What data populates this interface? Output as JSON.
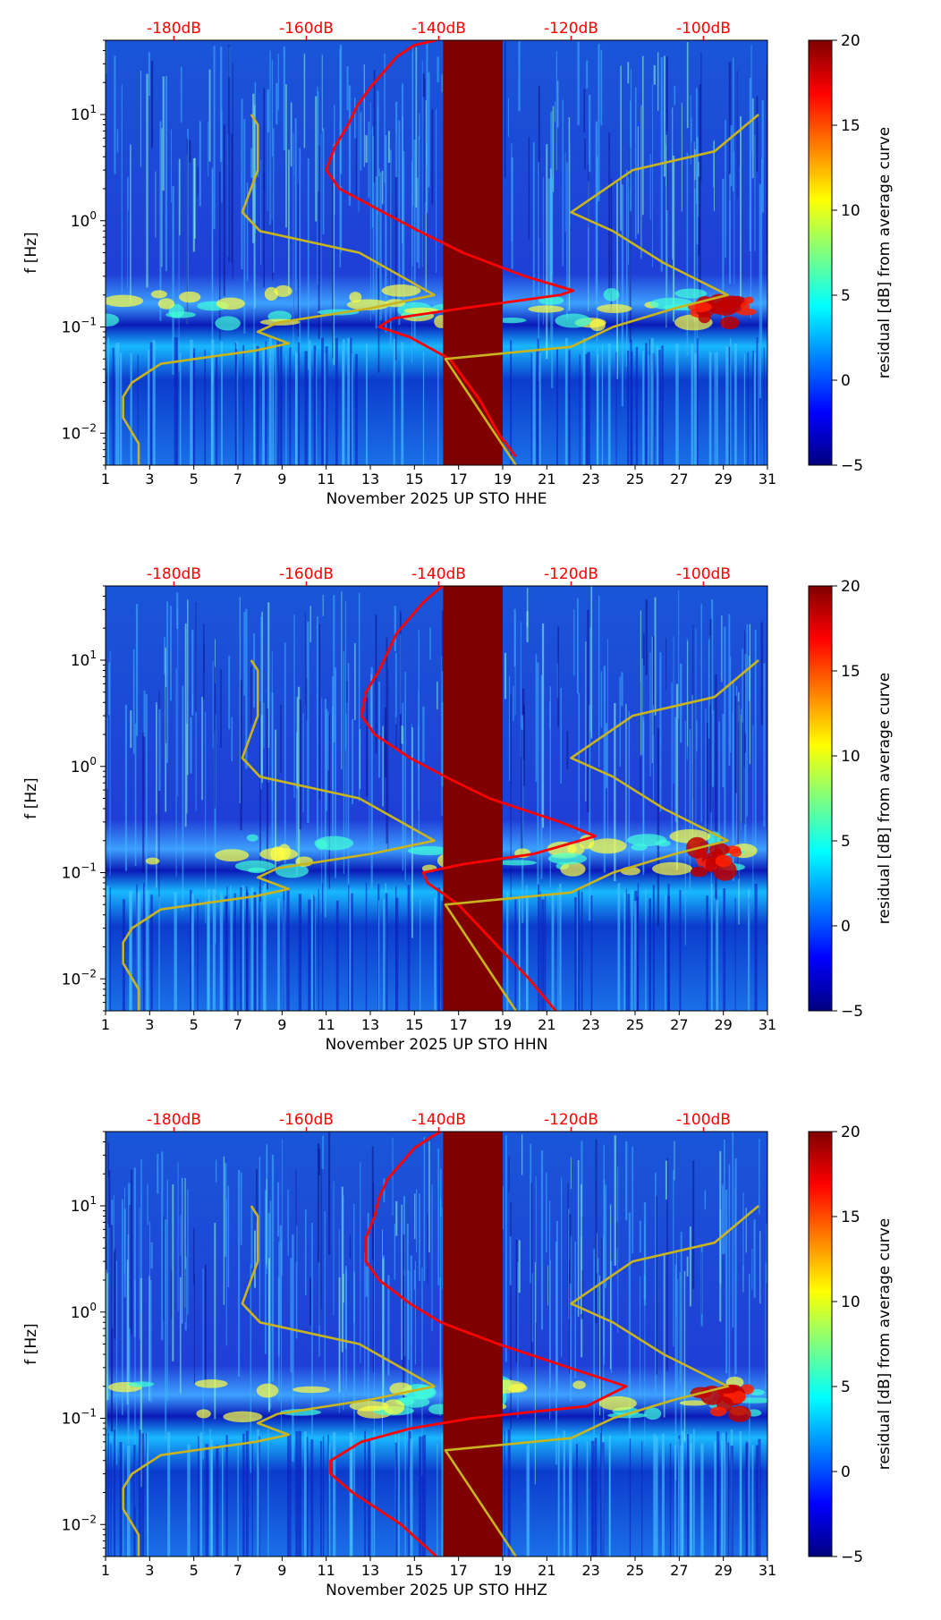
{
  "figure": {
    "colormap": [
      "#00007f",
      "#0000ff",
      "#007fff",
      "#00ffff",
      "#7fff7f",
      "#ffff00",
      "#ff7f00",
      "#ff0000",
      "#7f0000"
    ],
    "top_axis_color": "#ff0000",
    "red_curve_color": "#ff0000",
    "model_curve_color": "#c8b41e",
    "gap_color": "#7f0000"
  },
  "chart_data": [
    {
      "type": "heatmap",
      "xlabel": "November 2025 UP STO  HHE",
      "ylabel": "f [Hz]",
      "xlim": [
        1,
        31
      ],
      "ylim": [
        0.005,
        50
      ],
      "yscale": "log",
      "x_ticks": [
        "1",
        "3",
        "5",
        "7",
        "9",
        "11",
        "13",
        "15",
        "17",
        "19",
        "21",
        "23",
        "25",
        "27",
        "29",
        "31"
      ],
      "y_ticks": [
        {
          "value": 0.01,
          "label": "10",
          "exp": "−2"
        },
        {
          "value": 0.1,
          "label": "10",
          "exp": "−1"
        },
        {
          "value": 1,
          "label": "10",
          "exp": "0"
        },
        {
          "value": 10,
          "label": "10",
          "exp": "1"
        }
      ],
      "top_axis": {
        "ticks": [
          {
            "x": 4.1,
            "label": "-180dB"
          },
          {
            "x": 10.1,
            "label": "-160dB"
          },
          {
            "x": 16.1,
            "label": "-140dB"
          },
          {
            "x": 22.1,
            "label": "-120dB"
          },
          {
            "x": 28.1,
            "label": "-100dB"
          }
        ]
      },
      "data_gap": [
        16.3,
        19.0
      ],
      "colorbar": {
        "label": "residual [dB] from average curve",
        "range": [
          -5,
          20
        ],
        "ticks": [
          "−5",
          "0",
          "5",
          "10",
          "15",
          "20"
        ]
      },
      "series": [
        {
          "kind": "spectrum",
          "points": [
            [
              0.006,
              19.6
            ],
            [
              0.01,
              18.8
            ],
            [
              0.02,
              18.0
            ],
            [
              0.05,
              16.6
            ],
            [
              0.08,
              14.8
            ],
            [
              0.1,
              13.4
            ],
            [
              0.12,
              14.0
            ],
            [
              0.15,
              17.2
            ],
            [
              0.2,
              21.6
            ],
            [
              0.22,
              22.2
            ],
            [
              0.3,
              20.0
            ],
            [
              0.5,
              17.2
            ],
            [
              0.8,
              15.2
            ],
            [
              1.2,
              13.6
            ],
            [
              2.0,
              11.6
            ],
            [
              3.0,
              11.0
            ],
            [
              5.0,
              11.4
            ],
            [
              8.0,
              12.0
            ],
            [
              12.0,
              12.4
            ],
            [
              18.0,
              13.0
            ],
            [
              25.0,
              13.6
            ],
            [
              35.0,
              14.2
            ],
            [
              45.0,
              15.0
            ],
            [
              50.0,
              16.0
            ]
          ]
        },
        {
          "kind": "noise-model-low",
          "points": [
            [
              0.005,
              2.5
            ],
            [
              0.008,
              2.5
            ],
            [
              0.014,
              1.8
            ],
            [
              0.022,
              1.8
            ],
            [
              0.03,
              2.2
            ],
            [
              0.045,
              3.5
            ],
            [
              0.06,
              7.8
            ],
            [
              0.07,
              9.3
            ],
            [
              0.09,
              7.9
            ],
            [
              0.11,
              8.8
            ],
            [
              0.15,
              13.0
            ],
            [
              0.2,
              15.9
            ],
            [
              0.5,
              12.5
            ],
            [
              0.8,
              8.0
            ],
            [
              1.2,
              7.2
            ],
            [
              3.0,
              7.9
            ],
            [
              8.0,
              7.9
            ],
            [
              10.0,
              7.6
            ]
          ]
        },
        {
          "kind": "noise-model-high",
          "points": [
            [
              0.005,
              19.6
            ],
            [
              0.05,
              16.4
            ],
            [
              0.065,
              22.1
            ],
            [
              0.1,
              24.0
            ],
            [
              0.15,
              26.8
            ],
            [
              0.2,
              29.2
            ],
            [
              0.4,
              26.3
            ],
            [
              0.8,
              24.0
            ],
            [
              1.2,
              22.1
            ],
            [
              3.0,
              24.9
            ],
            [
              4.5,
              28.6
            ],
            [
              10.0,
              30.6
            ]
          ]
        }
      ]
    },
    {
      "type": "heatmap",
      "xlabel": "November 2025 UP STO  HHN",
      "ylabel": "f [Hz]",
      "xlim": [
        1,
        31
      ],
      "ylim": [
        0.005,
        50
      ],
      "yscale": "log",
      "x_ticks": [
        "1",
        "3",
        "5",
        "7",
        "9",
        "11",
        "13",
        "15",
        "17",
        "19",
        "21",
        "23",
        "25",
        "27",
        "29",
        "31"
      ],
      "y_ticks": [
        {
          "value": 0.01,
          "label": "10",
          "exp": "−2"
        },
        {
          "value": 0.1,
          "label": "10",
          "exp": "−1"
        },
        {
          "value": 1,
          "label": "10",
          "exp": "0"
        },
        {
          "value": 10,
          "label": "10",
          "exp": "1"
        }
      ],
      "top_axis": {
        "ticks": [
          {
            "x": 4.1,
            "label": "-180dB"
          },
          {
            "x": 10.1,
            "label": "-160dB"
          },
          {
            "x": 16.1,
            "label": "-140dB"
          },
          {
            "x": 22.1,
            "label": "-120dB"
          },
          {
            "x": 28.1,
            "label": "-100dB"
          }
        ]
      },
      "data_gap": [
        16.3,
        19.0
      ],
      "colorbar": {
        "label": "residual [dB] from average curve",
        "range": [
          -5,
          20
        ],
        "ticks": [
          "−5",
          "0",
          "5",
          "10",
          "15",
          "20"
        ]
      },
      "series": [
        {
          "kind": "spectrum",
          "points": [
            [
              0.005,
              21.4
            ],
            [
              0.01,
              20.2
            ],
            [
              0.02,
              18.8
            ],
            [
              0.05,
              17.0
            ],
            [
              0.08,
              15.6
            ],
            [
              0.1,
              15.4
            ],
            [
              0.12,
              17.2
            ],
            [
              0.15,
              20.4
            ],
            [
              0.22,
              23.2
            ],
            [
              0.3,
              21.6
            ],
            [
              0.5,
              18.4
            ],
            [
              0.8,
              16.4
            ],
            [
              1.2,
              14.8
            ],
            [
              2.0,
              13.2
            ],
            [
              3.0,
              12.6
            ],
            [
              5.0,
              12.8
            ],
            [
              8.0,
              13.4
            ],
            [
              12.0,
              13.8
            ],
            [
              18.0,
              14.2
            ],
            [
              25.0,
              14.8
            ],
            [
              35.0,
              15.4
            ],
            [
              45.0,
              16.0
            ],
            [
              50.0,
              16.3
            ]
          ]
        },
        {
          "kind": "noise-model-low",
          "points": [
            [
              0.005,
              2.5
            ],
            [
              0.008,
              2.5
            ],
            [
              0.014,
              1.8
            ],
            [
              0.022,
              1.8
            ],
            [
              0.03,
              2.2
            ],
            [
              0.045,
              3.5
            ],
            [
              0.06,
              7.8
            ],
            [
              0.07,
              9.3
            ],
            [
              0.09,
              7.9
            ],
            [
              0.11,
              8.8
            ],
            [
              0.15,
              13.0
            ],
            [
              0.2,
              15.9
            ],
            [
              0.5,
              12.5
            ],
            [
              0.8,
              8.0
            ],
            [
              1.2,
              7.2
            ],
            [
              3.0,
              7.9
            ],
            [
              8.0,
              7.9
            ],
            [
              10.0,
              7.6
            ]
          ]
        },
        {
          "kind": "noise-model-high",
          "points": [
            [
              0.005,
              19.6
            ],
            [
              0.05,
              16.4
            ],
            [
              0.065,
              22.1
            ],
            [
              0.1,
              24.0
            ],
            [
              0.15,
              26.8
            ],
            [
              0.2,
              29.2
            ],
            [
              0.4,
              26.3
            ],
            [
              0.8,
              24.0
            ],
            [
              1.2,
              22.1
            ],
            [
              3.0,
              24.9
            ],
            [
              4.5,
              28.6
            ],
            [
              10.0,
              30.6
            ]
          ]
        }
      ]
    },
    {
      "type": "heatmap",
      "xlabel": "November 2025 UP STO  HHZ",
      "ylabel": "f [Hz]",
      "xlim": [
        1,
        31
      ],
      "ylim": [
        0.005,
        50
      ],
      "yscale": "log",
      "x_ticks": [
        "1",
        "3",
        "5",
        "7",
        "9",
        "11",
        "13",
        "15",
        "17",
        "19",
        "21",
        "23",
        "25",
        "27",
        "29",
        "31"
      ],
      "y_ticks": [
        {
          "value": 0.01,
          "label": "10",
          "exp": "−2"
        },
        {
          "value": 0.1,
          "label": "10",
          "exp": "−1"
        },
        {
          "value": 1,
          "label": "10",
          "exp": "0"
        },
        {
          "value": 10,
          "label": "10",
          "exp": "1"
        }
      ],
      "top_axis": {
        "ticks": [
          {
            "x": 4.1,
            "label": "-180dB"
          },
          {
            "x": 10.1,
            "label": "-160dB"
          },
          {
            "x": 16.1,
            "label": "-140dB"
          },
          {
            "x": 22.1,
            "label": "-120dB"
          },
          {
            "x": 28.1,
            "label": "-100dB"
          }
        ]
      },
      "data_gap": [
        16.3,
        19.0
      ],
      "colorbar": {
        "label": "residual [dB] from average curve",
        "range": [
          -5,
          20
        ],
        "ticks": [
          "−5",
          "0",
          "5",
          "10",
          "15",
          "20"
        ]
      },
      "series": [
        {
          "kind": "spectrum",
          "points": [
            [
              0.005,
              16.0
            ],
            [
              0.01,
              14.4
            ],
            [
              0.02,
              12.2
            ],
            [
              0.03,
              11.2
            ],
            [
              0.04,
              11.2
            ],
            [
              0.06,
              12.6
            ],
            [
              0.08,
              14.8
            ],
            [
              0.1,
              17.6
            ],
            [
              0.13,
              22.8
            ],
            [
              0.2,
              24.6
            ],
            [
              0.3,
              22.0
            ],
            [
              0.5,
              18.8
            ],
            [
              0.8,
              16.2
            ],
            [
              1.2,
              14.8
            ],
            [
              2.0,
              13.4
            ],
            [
              3.0,
              12.8
            ],
            [
              5.0,
              12.8
            ],
            [
              8.0,
              13.2
            ],
            [
              12.0,
              13.4
            ],
            [
              18.0,
              13.8
            ],
            [
              25.0,
              14.4
            ],
            [
              35.0,
              15.0
            ],
            [
              45.0,
              15.8
            ],
            [
              50.0,
              16.2
            ]
          ]
        },
        {
          "kind": "noise-model-low",
          "points": [
            [
              0.005,
              2.5
            ],
            [
              0.008,
              2.5
            ],
            [
              0.014,
              1.8
            ],
            [
              0.022,
              1.8
            ],
            [
              0.03,
              2.2
            ],
            [
              0.045,
              3.5
            ],
            [
              0.06,
              7.8
            ],
            [
              0.07,
              9.3
            ],
            [
              0.09,
              7.9
            ],
            [
              0.11,
              8.8
            ],
            [
              0.15,
              13.0
            ],
            [
              0.2,
              15.9
            ],
            [
              0.5,
              12.5
            ],
            [
              0.8,
              8.0
            ],
            [
              1.2,
              7.2
            ],
            [
              3.0,
              7.9
            ],
            [
              8.0,
              7.9
            ],
            [
              10.0,
              7.6
            ]
          ]
        },
        {
          "kind": "noise-model-high",
          "points": [
            [
              0.005,
              19.6
            ],
            [
              0.05,
              16.4
            ],
            [
              0.065,
              22.1
            ],
            [
              0.1,
              24.0
            ],
            [
              0.15,
              26.8
            ],
            [
              0.2,
              29.2
            ],
            [
              0.4,
              26.3
            ],
            [
              0.8,
              24.0
            ],
            [
              1.2,
              22.1
            ],
            [
              3.0,
              24.9
            ],
            [
              4.5,
              28.6
            ],
            [
              10.0,
              30.6
            ]
          ]
        }
      ]
    }
  ]
}
